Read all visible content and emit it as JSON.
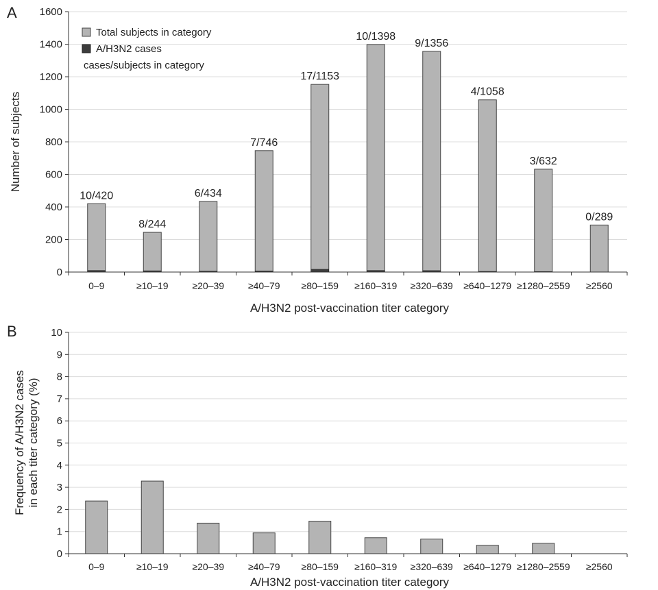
{
  "chart_data": [
    {
      "panel": "A",
      "type": "bar",
      "categories": [
        "0–9",
        "≥10–19",
        "≥20–39",
        "≥40–79",
        "≥80–159",
        "≥160–319",
        "≥320–639",
        "≥640–1279",
        "≥1280–2559",
        "≥2560"
      ],
      "series": [
        {
          "name": "Total subjects in category",
          "values": [
            420,
            244,
            434,
            746,
            1153,
            1398,
            1356,
            1058,
            632,
            289
          ],
          "color": "#b4b4b4"
        },
        {
          "name": "A/H3N2 cases",
          "values": [
            10,
            8,
            6,
            7,
            17,
            10,
            9,
            4,
            3,
            0
          ],
          "color": "#3c3c3c"
        }
      ],
      "data_labels": [
        "10/420",
        "8/244",
        "6/434",
        "7/746",
        "17/1153",
        "10/1398",
        "9/1356",
        "4/1058",
        "3/632",
        "0/289"
      ],
      "legend": {
        "entries": [
          "Total subjects in category",
          "A/H3N2 cases"
        ],
        "note": "cases/subjects in category",
        "placement": "top-left"
      },
      "xlabel": "A/H3N2 post-vaccination titer category",
      "ylabel": "Number of subjects",
      "ylim": [
        0,
        1600
      ],
      "yticks": [
        0,
        200,
        400,
        600,
        800,
        1000,
        1200,
        1400,
        1600
      ],
      "grid": true
    },
    {
      "panel": "B",
      "type": "bar",
      "categories": [
        "0–9",
        "≥10–19",
        "≥20–39",
        "≥40–79",
        "≥80–159",
        "≥160–319",
        "≥320–639",
        "≥640–1279",
        "≥1280–2559",
        "≥2560"
      ],
      "series": [
        {
          "values": [
            2.38,
            3.28,
            1.38,
            0.94,
            1.47,
            0.72,
            0.66,
            0.38,
            0.47,
            0
          ],
          "color": "#b4b4b4"
        }
      ],
      "xlabel": "A/H3N2 post-vaccination titer category",
      "ylabel_lines": [
        "Frequency of A/H3N2 cases",
        "in each titer category (%)"
      ],
      "ylim": [
        0,
        10
      ],
      "yticks": [
        0,
        1,
        2,
        3,
        4,
        5,
        6,
        7,
        8,
        9,
        10
      ],
      "grid": true
    }
  ]
}
